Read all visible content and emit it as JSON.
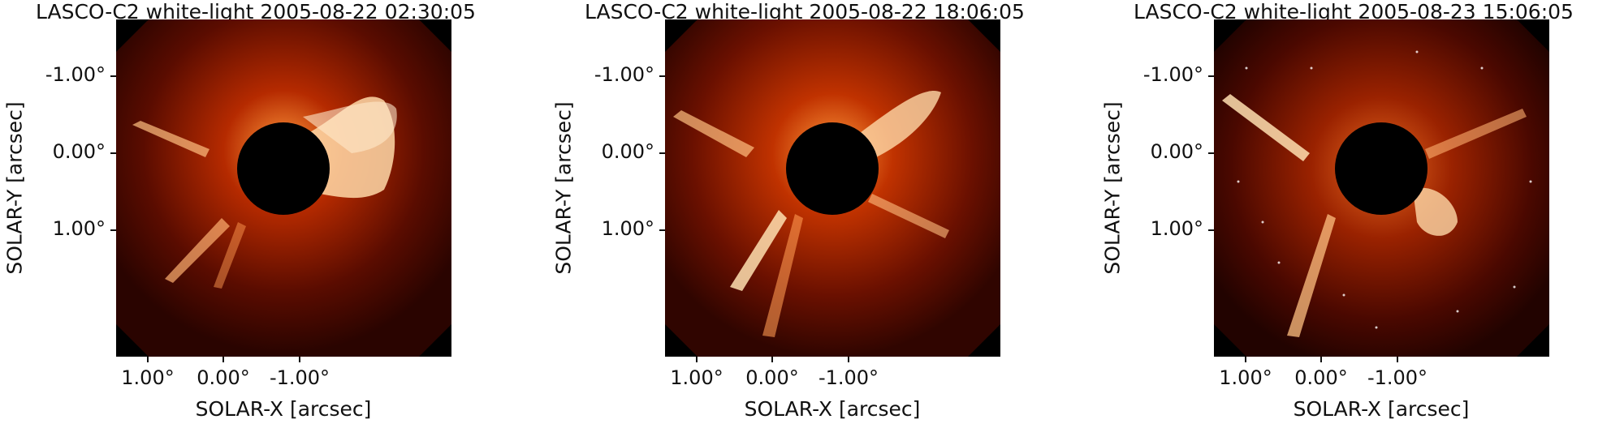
{
  "panels": [
    {
      "title": "LASCO-C2 white-light 2005-08-22 02:30:05",
      "xlabel": "SOLAR-X [arcsec]",
      "ylabel": "SOLAR-Y [arcsec]",
      "yticks": [
        "-1.00°",
        "0.00°",
        "1.00°"
      ],
      "xticks": [
        "1.00°",
        "0.00°",
        "-1.00°"
      ]
    },
    {
      "title": "LASCO-C2 white-light 2005-08-22 18:06:05",
      "xlabel": "SOLAR-X [arcsec]",
      "ylabel": "SOLAR-Y [arcsec]",
      "yticks": [
        "-1.00°",
        "0.00°",
        "1.00°"
      ],
      "xticks": [
        "1.00°",
        "0.00°",
        "-1.00°"
      ]
    },
    {
      "title": "LASCO-C2 white-light 2005-08-23 15:06:05",
      "xlabel": "SOLAR-X [arcsec]",
      "ylabel": "SOLAR-Y [arcsec]",
      "yticks": [
        "-1.00°",
        "0.00°",
        "1.00°"
      ],
      "xticks": [
        "1.00°",
        "0.00°",
        "-1.00°"
      ]
    }
  ],
  "colors": {
    "background": "#000000",
    "corona_dark": "#3a0600",
    "corona_mid": "#b52a00",
    "corona_bright": "#ffd9a8",
    "occulter": "#000000"
  }
}
